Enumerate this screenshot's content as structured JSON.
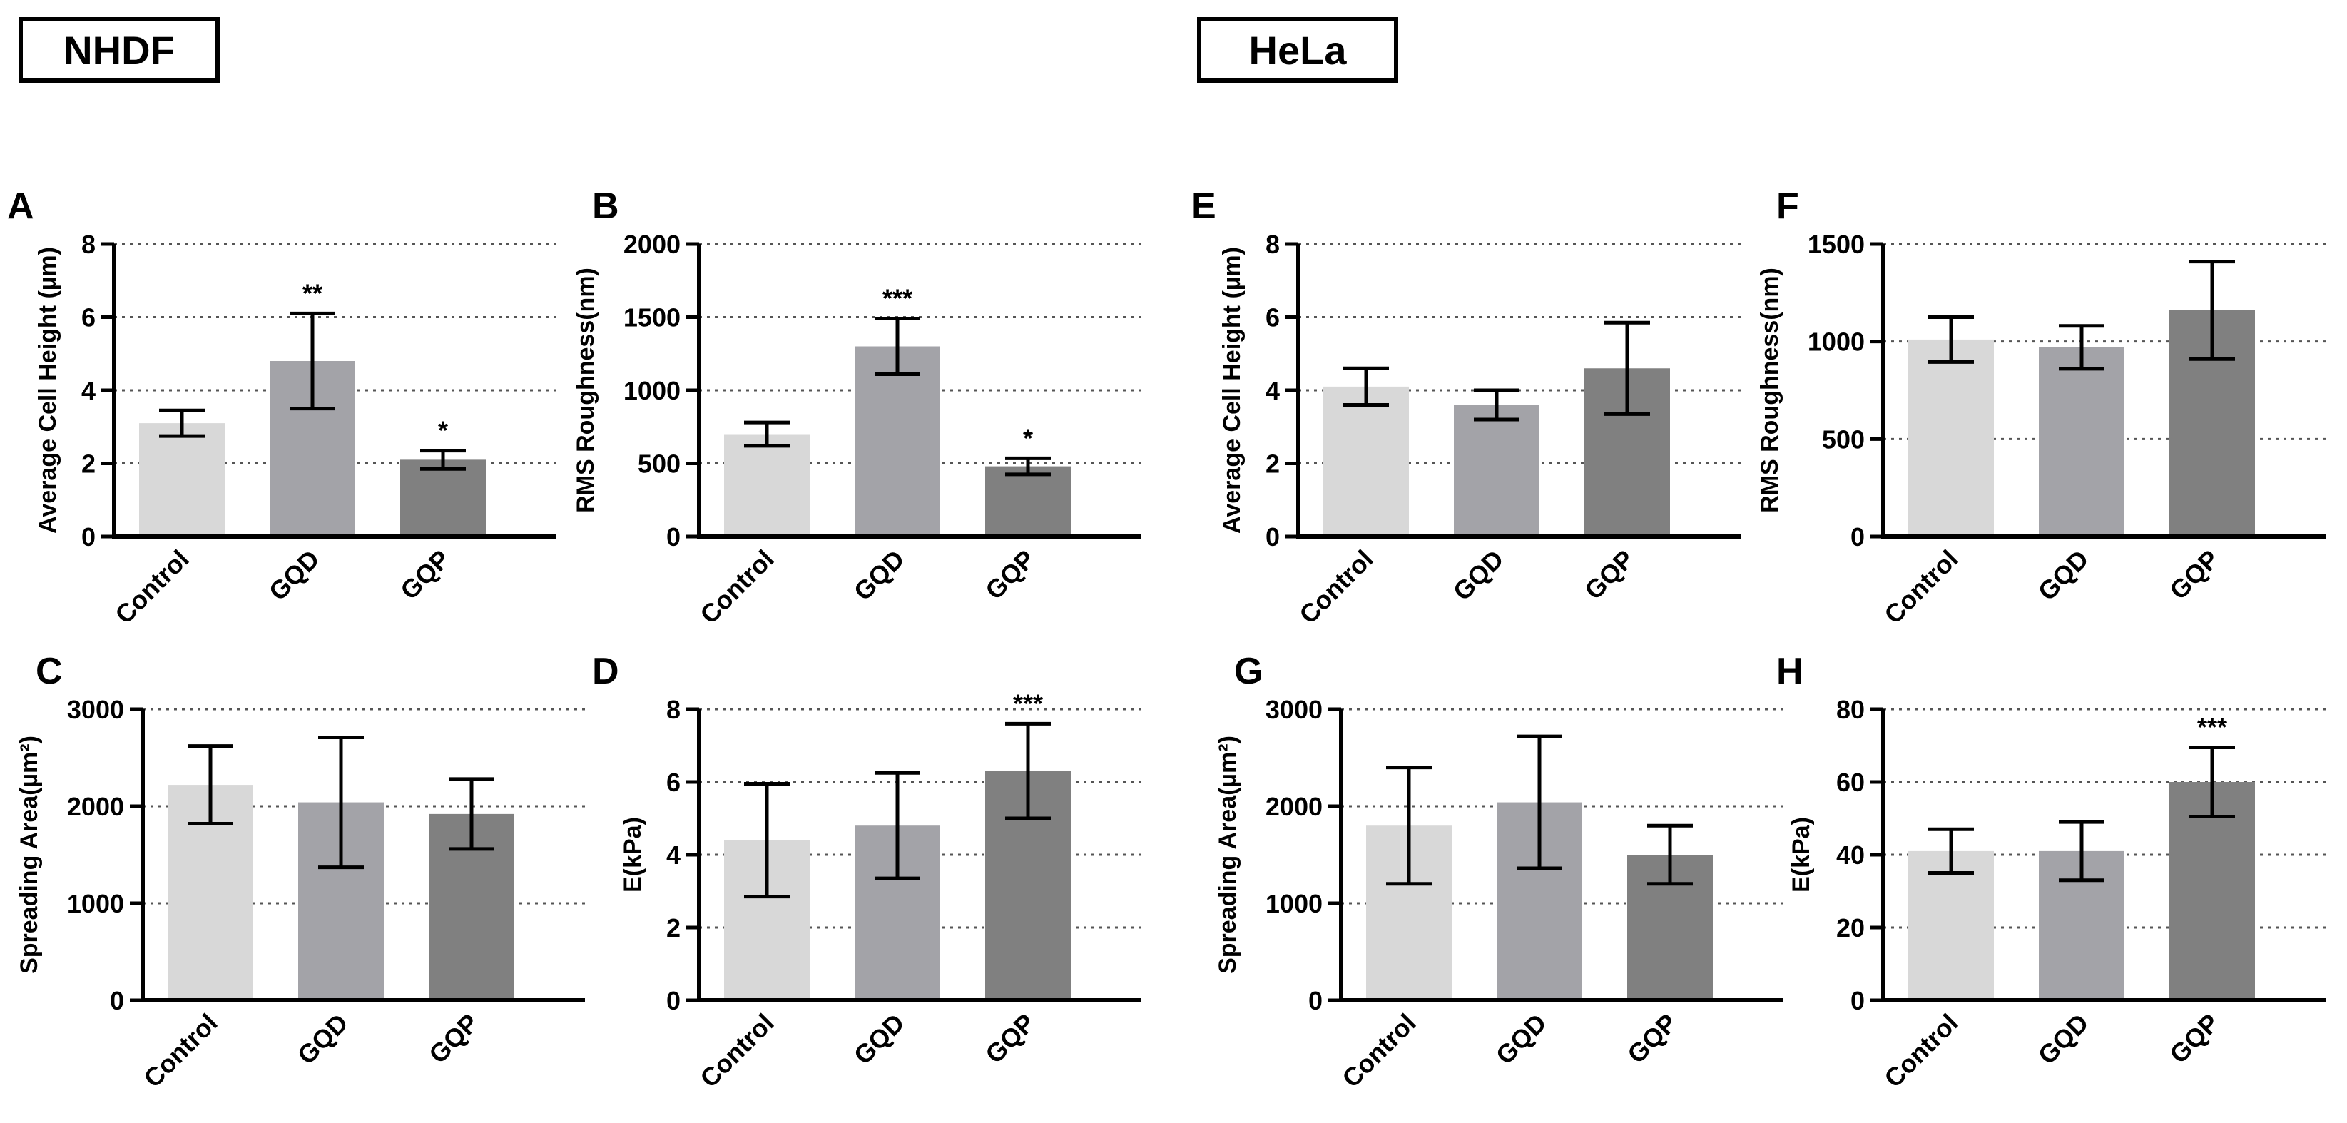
{
  "groups": {
    "left": "NHDF",
    "right": "HeLa"
  },
  "colors": {
    "control": "#d8d8d8",
    "gqd": "#a3a3a8",
    "gqp": "#808080",
    "axis": "#000000",
    "grid": "#555555"
  },
  "chart_data": [
    {
      "id": "A",
      "panel": "A",
      "type": "bar",
      "group": "NHDF",
      "categories": [
        "Control",
        "GQD",
        "GQP"
      ],
      "values": [
        3.1,
        4.8,
        2.1
      ],
      "errors": [
        0.35,
        1.3,
        0.25
      ],
      "sig": [
        "",
        "**",
        "*"
      ],
      "ylabel": "Average Cell Height (µm)",
      "ylim": [
        0,
        8
      ],
      "yticks": [
        0,
        2,
        4,
        6,
        8
      ],
      "ytick_labels": [
        "0",
        "2",
        "4",
        "6",
        "8"
      ],
      "grid": true
    },
    {
      "id": "B",
      "panel": "B",
      "type": "bar",
      "group": "NHDF",
      "categories": [
        "Control",
        "GQD",
        "GQP"
      ],
      "values": [
        700,
        1300,
        480
      ],
      "errors": [
        80,
        190,
        55
      ],
      "sig": [
        "",
        "***",
        "*"
      ],
      "ylabel": "RMS Roughness(nm)",
      "ylim": [
        0,
        2000
      ],
      "yticks": [
        0,
        500,
        1000,
        1500,
        2000
      ],
      "ytick_labels": [
        "0",
        "500",
        "1000",
        "1500",
        "2000"
      ],
      "grid": true
    },
    {
      "id": "C",
      "panel": "C",
      "type": "bar",
      "group": "NHDF",
      "categories": [
        "Control",
        "GQD",
        "GQP"
      ],
      "values": [
        2220,
        2040,
        1920
      ],
      "errors": [
        400,
        670,
        360
      ],
      "sig": [
        "",
        "",
        ""
      ],
      "ylabel": "Spreading Area(µm²)",
      "ylim": [
        0,
        3000
      ],
      "yticks": [
        0,
        1000,
        2000,
        3000
      ],
      "ytick_labels": [
        "0",
        "1000",
        "2000",
        "3000"
      ],
      "grid": true
    },
    {
      "id": "D",
      "panel": "D",
      "type": "bar",
      "group": "NHDF",
      "categories": [
        "Control",
        "GQD",
        "GQP"
      ],
      "values": [
        4.4,
        4.8,
        6.3
      ],
      "errors": [
        1.55,
        1.45,
        1.3
      ],
      "sig": [
        "",
        "",
        "***"
      ],
      "ylabel": "E(kPa)",
      "ylim": [
        0,
        8
      ],
      "yticks": [
        0,
        2,
        4,
        6,
        8
      ],
      "ytick_labels": [
        "0",
        "2",
        "4",
        "6",
        "8"
      ],
      "grid": true
    },
    {
      "id": "E",
      "panel": "E",
      "type": "bar",
      "group": "HeLa",
      "categories": [
        "Control",
        "GQD",
        "GQP"
      ],
      "values": [
        4.1,
        3.6,
        4.6
      ],
      "errors": [
        0.5,
        0.4,
        1.25
      ],
      "sig": [
        "",
        "",
        ""
      ],
      "ylabel": "Average Cell Height (µm)",
      "ylim": [
        0,
        8
      ],
      "yticks": [
        0,
        2,
        4,
        6,
        8
      ],
      "ytick_labels": [
        "0",
        "2",
        "4",
        "6",
        "8"
      ],
      "grid": true
    },
    {
      "id": "F",
      "panel": "F",
      "type": "bar",
      "group": "HeLa",
      "categories": [
        "Control",
        "GQD",
        "GQP"
      ],
      "values": [
        1010,
        970,
        1160
      ],
      "errors": [
        115,
        110,
        250
      ],
      "sig": [
        "",
        "",
        ""
      ],
      "ylabel": "RMS Roughness(nm)",
      "ylim": [
        0,
        1500
      ],
      "yticks": [
        0,
        500,
        1000,
        1500
      ],
      "ytick_labels": [
        "0",
        "500",
        "1000",
        "1500"
      ],
      "grid": true
    },
    {
      "id": "G",
      "panel": "G",
      "type": "bar",
      "group": "HeLa",
      "categories": [
        "Control",
        "GQD",
        "GQP"
      ],
      "values": [
        1800,
        2040,
        1500
      ],
      "errors": [
        600,
        680,
        300
      ],
      "sig": [
        "",
        "",
        ""
      ],
      "ylabel": "Spreading Area(µm²)",
      "ylim": [
        0,
        3000
      ],
      "yticks": [
        0,
        1000,
        2000,
        3000
      ],
      "ytick_labels": [
        "0",
        "1000",
        "2000",
        "3000"
      ],
      "grid": true
    },
    {
      "id": "H",
      "panel": "H",
      "type": "bar",
      "group": "HeLa",
      "categories": [
        "Control",
        "GQD",
        "GQP"
      ],
      "values": [
        41,
        41,
        60
      ],
      "errors": [
        6,
        8,
        9.5
      ],
      "sig": [
        "",
        "",
        "***"
      ],
      "ylabel": "E(kPa)",
      "ylim": [
        0,
        80
      ],
      "yticks": [
        0,
        20,
        40,
        60,
        80
      ],
      "ytick_labels": [
        "0",
        "20",
        "40",
        "60",
        "80"
      ],
      "grid": true
    }
  ]
}
